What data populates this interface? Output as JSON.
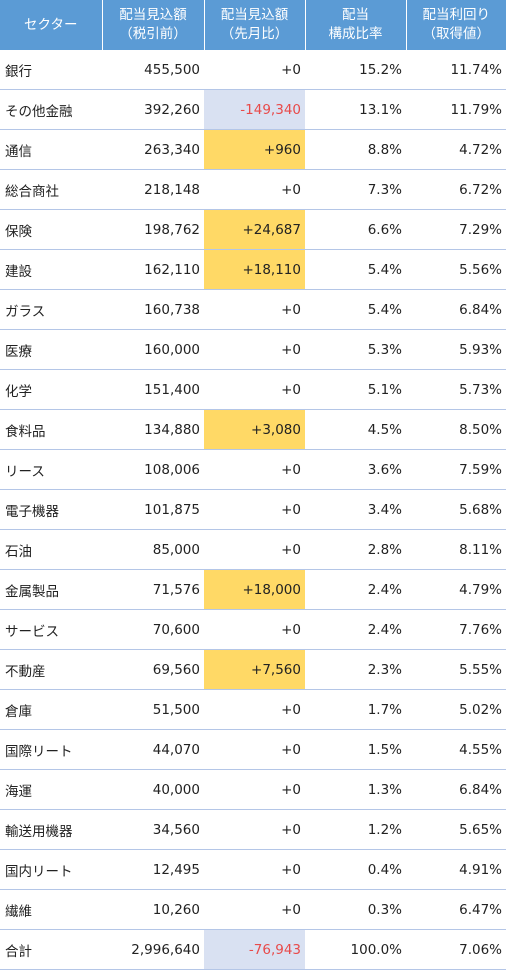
{
  "header": [
    {
      "line1": "セクター",
      "line2": ""
    },
    {
      "line1": "配当見込額",
      "line2": "（税引前）"
    },
    {
      "line1": "配当見込額",
      "line2": "（先月比）"
    },
    {
      "line1": "配当",
      "line2": "構成比率"
    },
    {
      "line1": "配当利回り",
      "line2": "（取得値）"
    }
  ],
  "rows": [
    {
      "sector": "銀行",
      "amount": "455,500",
      "change": "+0",
      "ratio": "15.2%",
      "yield": "11.74%",
      "highlight": ""
    },
    {
      "sector": "その他金融",
      "amount": "392,260",
      "change": "-149,340",
      "ratio": "13.1%",
      "yield": "11.79%",
      "highlight": "blue"
    },
    {
      "sector": "通信",
      "amount": "263,340",
      "change": "+960",
      "ratio": "8.8%",
      "yield": "4.72%",
      "highlight": "yellow"
    },
    {
      "sector": "総合商社",
      "amount": "218,148",
      "change": "+0",
      "ratio": "7.3%",
      "yield": "6.72%",
      "highlight": ""
    },
    {
      "sector": "保険",
      "amount": "198,762",
      "change": "+24,687",
      "ratio": "6.6%",
      "yield": "7.29%",
      "highlight": "yellow"
    },
    {
      "sector": "建設",
      "amount": "162,110",
      "change": "+18,110",
      "ratio": "5.4%",
      "yield": "5.56%",
      "highlight": "yellow"
    },
    {
      "sector": "ガラス",
      "amount": "160,738",
      "change": "+0",
      "ratio": "5.4%",
      "yield": "6.84%",
      "highlight": ""
    },
    {
      "sector": "医療",
      "amount": "160,000",
      "change": "+0",
      "ratio": "5.3%",
      "yield": "5.93%",
      "highlight": ""
    },
    {
      "sector": "化学",
      "amount": "151,400",
      "change": "+0",
      "ratio": "5.1%",
      "yield": "5.73%",
      "highlight": ""
    },
    {
      "sector": "食料品",
      "amount": "134,880",
      "change": "+3,080",
      "ratio": "4.5%",
      "yield": "8.50%",
      "highlight": "yellow"
    },
    {
      "sector": "リース",
      "amount": "108,006",
      "change": "+0",
      "ratio": "3.6%",
      "yield": "7.59%",
      "highlight": ""
    },
    {
      "sector": "電子機器",
      "amount": "101,875",
      "change": "+0",
      "ratio": "3.4%",
      "yield": "5.68%",
      "highlight": ""
    },
    {
      "sector": "石油",
      "amount": "85,000",
      "change": "+0",
      "ratio": "2.8%",
      "yield": "8.11%",
      "highlight": ""
    },
    {
      "sector": "金属製品",
      "amount": "71,576",
      "change": "+18,000",
      "ratio": "2.4%",
      "yield": "4.79%",
      "highlight": "yellow"
    },
    {
      "sector": "サービス",
      "amount": "70,600",
      "change": "+0",
      "ratio": "2.4%",
      "yield": "7.76%",
      "highlight": ""
    },
    {
      "sector": "不動産",
      "amount": "69,560",
      "change": "+7,560",
      "ratio": "2.3%",
      "yield": "5.55%",
      "highlight": "yellow"
    },
    {
      "sector": "倉庫",
      "amount": "51,500",
      "change": "+0",
      "ratio": "1.7%",
      "yield": "5.02%",
      "highlight": ""
    },
    {
      "sector": "国際リート",
      "amount": "44,070",
      "change": "+0",
      "ratio": "1.5%",
      "yield": "4.55%",
      "highlight": ""
    },
    {
      "sector": "海運",
      "amount": "40,000",
      "change": "+0",
      "ratio": "1.3%",
      "yield": "6.84%",
      "highlight": ""
    },
    {
      "sector": "輸送用機器",
      "amount": "34,560",
      "change": "+0",
      "ratio": "1.2%",
      "yield": "5.65%",
      "highlight": ""
    },
    {
      "sector": "国内リート",
      "amount": "12,495",
      "change": "+0",
      "ratio": "0.4%",
      "yield": "4.91%",
      "highlight": ""
    },
    {
      "sector": "繊維",
      "amount": "10,260",
      "change": "+0",
      "ratio": "0.3%",
      "yield": "6.47%",
      "highlight": ""
    }
  ],
  "total": {
    "sector": "合計",
    "amount": "2,996,640",
    "change": "-76,943",
    "ratio": "100.0%",
    "yield": "7.06%",
    "highlight": "blue"
  },
  "colors": {
    "header_bg": "#5b9bd5",
    "highlight_yellow": "#ffd966",
    "highlight_blue": "#d9e1f2",
    "negative_text": "#e84a4a",
    "row_border": "#b4c6e7"
  }
}
